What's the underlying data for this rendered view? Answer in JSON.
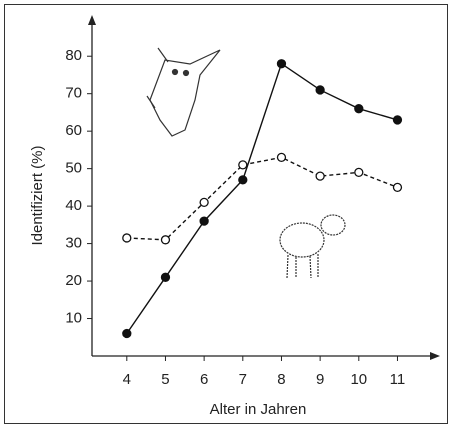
{
  "chart_data": {
    "type": "line",
    "x_label": "Alter in Jahren",
    "y_label": "Identifiziert (%)",
    "x": [
      4,
      5,
      6,
      7,
      8,
      9,
      10,
      11
    ],
    "series": [
      {
        "color": "#111111",
        "values": [
          6,
          21,
          36,
          47,
          78,
          71,
          66,
          63
        ]
      },
      {
        "color": "#111111",
        "values": [
          31.5,
          31,
          41,
          51,
          53,
          48,
          49,
          45
        ]
      }
    ],
    "xlim": [
      3.1,
      12.1
    ],
    "ylim": [
      0,
      91
    ],
    "xticks": [
      4,
      5,
      6,
      7,
      8,
      9,
      10,
      11
    ],
    "yticks": [
      10,
      20,
      30,
      40,
      50,
      60,
      70,
      80
    ]
  }
}
